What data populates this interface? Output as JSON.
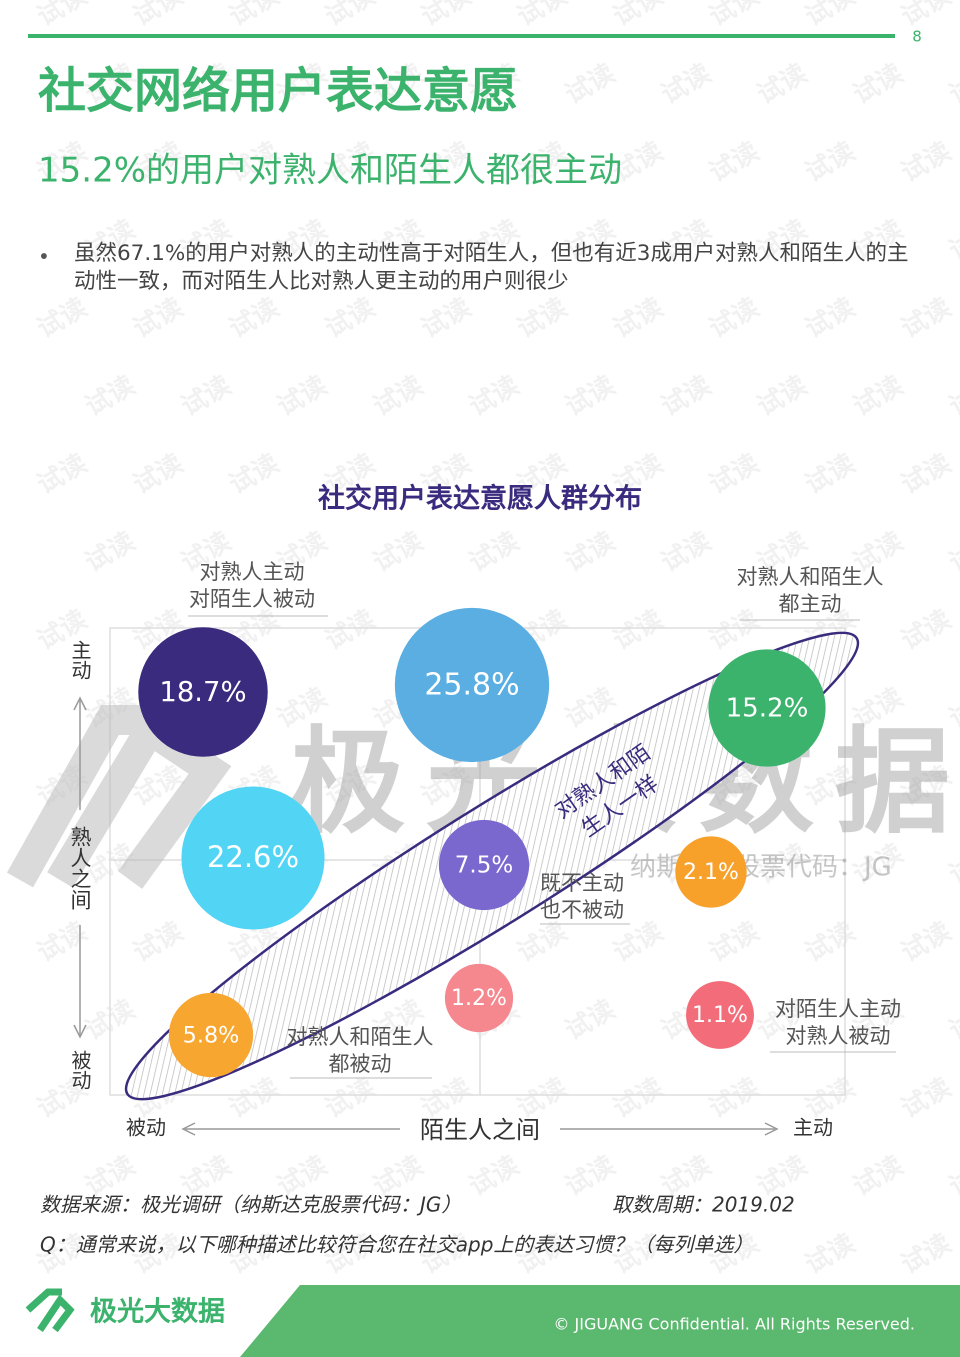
{
  "page_number": "8",
  "header": {
    "title": "社交网络用户表达意愿",
    "subtitle": "15.2%的用户对熟人和陌生人都很主动"
  },
  "bullet": "虽然67.1%的用户对熟人的主动性高于对陌生人，但也有近3成用户对熟人和陌生人的主动性一致，而对陌生人比对熟人更主动的用户则很少",
  "chart_data": {
    "type": "bubble",
    "title": "社交用户表达意愿人群分布",
    "x_label": "陌生人之间",
    "x_categories": [
      "被动",
      null,
      "主动"
    ],
    "y_label": "熟人之间",
    "y_categories": [
      "主动",
      null,
      "被动"
    ],
    "values": [
      [
        18.7,
        25.8,
        15.2
      ],
      [
        22.6,
        7.5,
        2.1
      ],
      [
        5.8,
        1.2,
        1.1
      ]
    ],
    "value_labels": [
      [
        "18.7%",
        "25.8%",
        "15.2%"
      ],
      [
        "22.6%",
        "7.5%",
        "2.1%"
      ],
      [
        "5.8%",
        "1.2%",
        "1.1%"
      ]
    ],
    "colors": [
      [
        "#3a2b7e",
        "#5aaee2",
        "#3bb36c"
      ],
      [
        "#52d4f4",
        "#7b68cf",
        "#f7a12a"
      ],
      [
        "#f7a630",
        "#f5878f",
        "#f26c79"
      ]
    ],
    "annotations": [
      [
        "对熟人主动",
        "对陌生人被动"
      ],
      [
        "对熟人和陌生人",
        "都主动"
      ],
      [
        "既不主动",
        "也不被动"
      ],
      [
        "对熟人和陌生人",
        "都被动"
      ],
      [
        "对陌生人主动",
        "对熟人被动"
      ],
      [
        "对熟人和陌",
        "生人一样"
      ]
    ]
  },
  "watermark": {
    "brand": "极光大数据",
    "ticker": "纳斯达克股票代码：JG",
    "tile": "试读"
  },
  "footer": {
    "source": "数据来源：极光调研（纳斯达克股票代码：JG）",
    "period": "取数周期：2019.02",
    "question": "Q：通常来说，以下哪种描述比较符合您在社交app上的表达习惯？（每列单选）",
    "logo": "极光大数据",
    "copyright": "© JIGUANG Confidential. All Rights Reserved."
  }
}
